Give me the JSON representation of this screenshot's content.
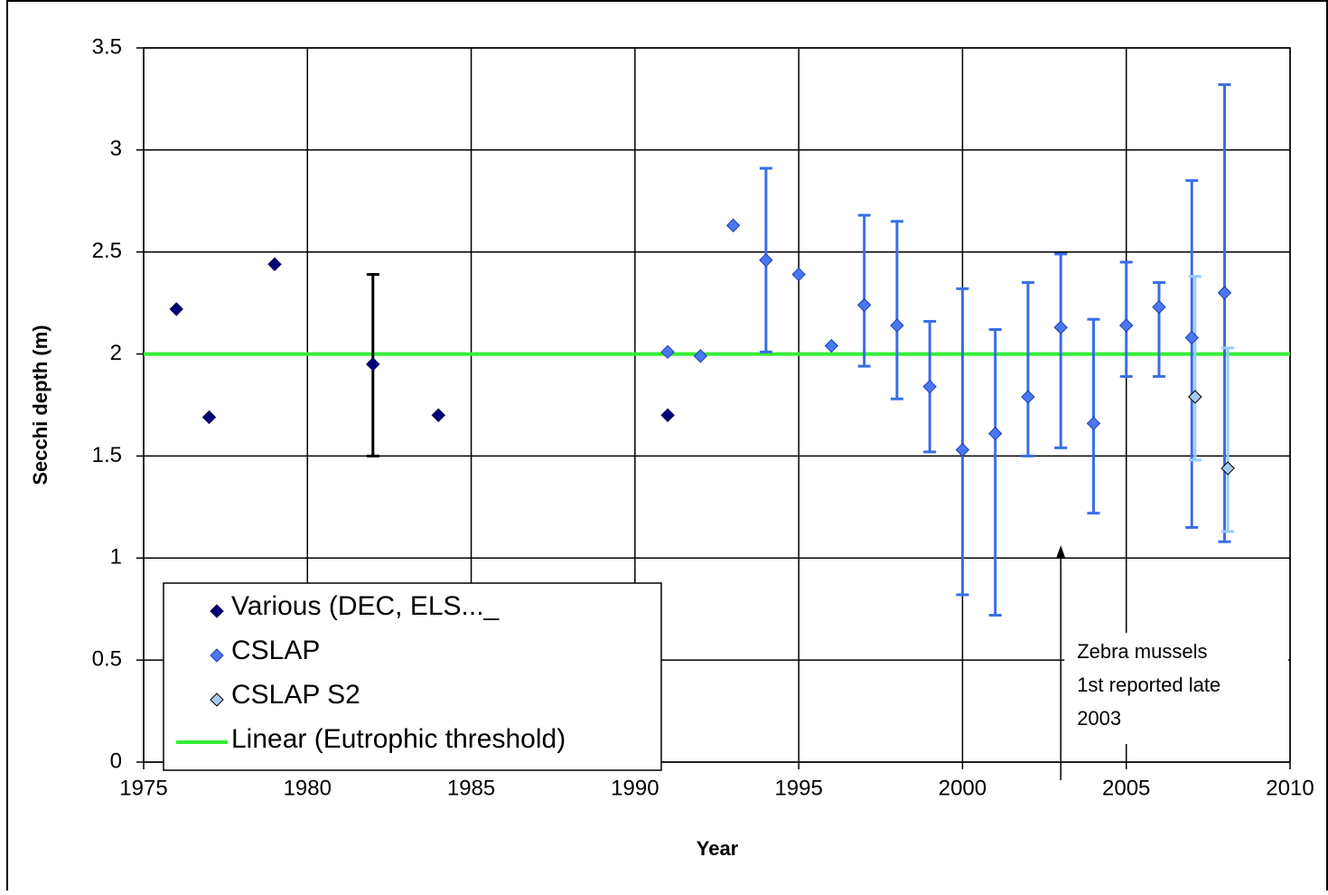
{
  "chart_data": {
    "type": "scatter",
    "x_label": "Year",
    "y_label": "Secchi depth (m)",
    "xlim": [
      1975,
      2010
    ],
    "xticks": [
      1975,
      1980,
      1985,
      1990,
      1995,
      2000,
      2005,
      2010
    ],
    "ylim": [
      0,
      3.5
    ],
    "yticks": [
      0,
      0.5,
      1,
      1.5,
      2,
      2.5,
      3,
      3.5
    ],
    "grid": true,
    "legend": "lower left",
    "series": [
      {
        "name": "Various (DEC, ELS..._",
        "color": "#00007a",
        "edge": "#00004a",
        "err_color": "#000000",
        "x": [
          1976,
          1977,
          1979,
          1982,
          1984,
          1991
        ],
        "values": [
          2.22,
          1.69,
          2.44,
          1.95,
          1.7,
          1.7
        ],
        "err_minus": [
          null,
          null,
          null,
          0.45,
          null,
          null
        ],
        "err_plus": [
          null,
          null,
          null,
          0.44,
          null,
          null
        ]
      },
      {
        "name": "CSLAP",
        "color": "#4a78f5",
        "edge": "#1f3fb0",
        "err_color": "#3a6ee8",
        "x": [
          1991,
          1992,
          1993,
          1994,
          1995,
          1996,
          1997,
          1998,
          1999,
          2000,
          2001,
          2002,
          2003,
          2004,
          2005,
          2006,
          2007,
          2008
        ],
        "values": [
          2.01,
          1.99,
          2.63,
          2.46,
          2.39,
          2.04,
          2.24,
          2.14,
          1.84,
          1.53,
          1.61,
          1.79,
          2.13,
          1.66,
          2.14,
          2.23,
          2.08,
          2.3
        ],
        "err_minus": [
          null,
          null,
          null,
          0.45,
          null,
          null,
          0.3,
          0.36,
          0.32,
          0.71,
          0.89,
          0.29,
          0.59,
          0.44,
          0.25,
          0.34,
          0.93,
          1.22
        ],
        "err_plus": [
          null,
          null,
          null,
          0.45,
          null,
          null,
          0.44,
          0.51,
          0.32,
          0.79,
          0.51,
          0.56,
          0.36,
          0.51,
          0.31,
          0.12,
          0.77,
          1.02
        ]
      },
      {
        "name": "CSLAP S2",
        "color": "#a6caf0",
        "edge": "#000000",
        "err_color": "#99ccff",
        "x": [
          2007.1,
          2008.1
        ],
        "values": [
          1.79,
          1.44
        ],
        "err_minus": [
          0.31,
          0.31
        ],
        "err_plus": [
          0.59,
          0.59
        ]
      }
    ],
    "threshold": {
      "name": "Linear (Eutrophic threshold)",
      "value": 2,
      "color": "#33ee33"
    },
    "annotation": {
      "x": 2003,
      "y": 1,
      "lines": [
        "Zebra mussels",
        "1st reported late",
        "2003"
      ]
    }
  }
}
